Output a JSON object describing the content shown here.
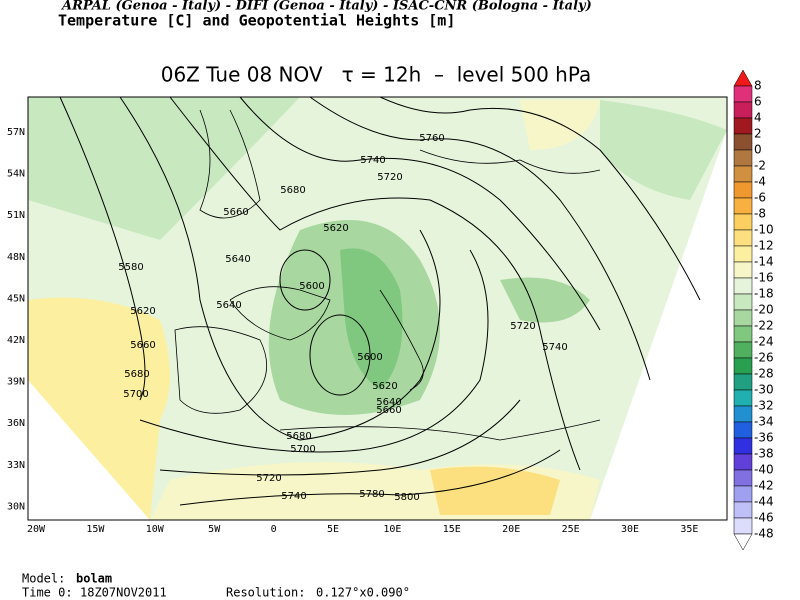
{
  "header": {
    "institutions": "ARPAL (Genoa - Italy)  -  DIFI (Genoa - Italy)  -  ISAC-CNR (Bologna - Italy)",
    "product": "Temperature [C] and Geopotential Heights [m]",
    "title": "06Z Tue 08 NOV   τ = 12h  –  level 500 hPa"
  },
  "map": {
    "lon_labels": [
      "20W",
      "15W",
      "10W",
      "5W",
      "0",
      "5E",
      "10E",
      "15E",
      "20E",
      "25E",
      "30E",
      "35E"
    ],
    "lat_labels": [
      "57N",
      "54N",
      "51N",
      "48N",
      "45N",
      "42N",
      "39N",
      "36N",
      "33N",
      "30N"
    ],
    "contour_labels": [
      5760,
      5740,
      5720,
      5680,
      5660,
      5620,
      5640,
      5580,
      5600,
      5640,
      5620,
      5720,
      5660,
      5740,
      5600,
      5680,
      5620,
      5700,
      5640,
      5660,
      5680,
      5700,
      5720,
      5740,
      5780,
      5800
    ]
  },
  "colorbar": {
    "levels": [
      8,
      6,
      4,
      2,
      0,
      -2,
      -4,
      -6,
      -8,
      -10,
      -12,
      -14,
      -16,
      -18,
      -20,
      -22,
      -24,
      -26,
      -28,
      -30,
      -32,
      -34,
      -36,
      -38,
      -40,
      -42,
      -44,
      -46,
      -48
    ],
    "colors": [
      "#f01818",
      "#e0307a",
      "#c81e5a",
      "#a01820",
      "#8a5030",
      "#b07840",
      "#d09040",
      "#f09830",
      "#f8b040",
      "#fcd060",
      "#fce080",
      "#fcf0a0",
      "#f6f6c8",
      "#e6f4dc",
      "#c8e8c0",
      "#a8d8a0",
      "#80c880",
      "#50b060",
      "#28a050",
      "#20a080",
      "#20b0b0",
      "#2090d0",
      "#2060e0",
      "#3030e0",
      "#6040d8",
      "#8070e0",
      "#a0a0f0",
      "#c0c0f8",
      "#dcdcfc",
      "#ffffff"
    ]
  },
  "footer": {
    "model_label": "Model:",
    "model": "bolam",
    "time_label": "Time 0:",
    "time": "18Z07NOV2011",
    "resolution_label": "Resolution:",
    "resolution": "0.127°x0.090°"
  }
}
